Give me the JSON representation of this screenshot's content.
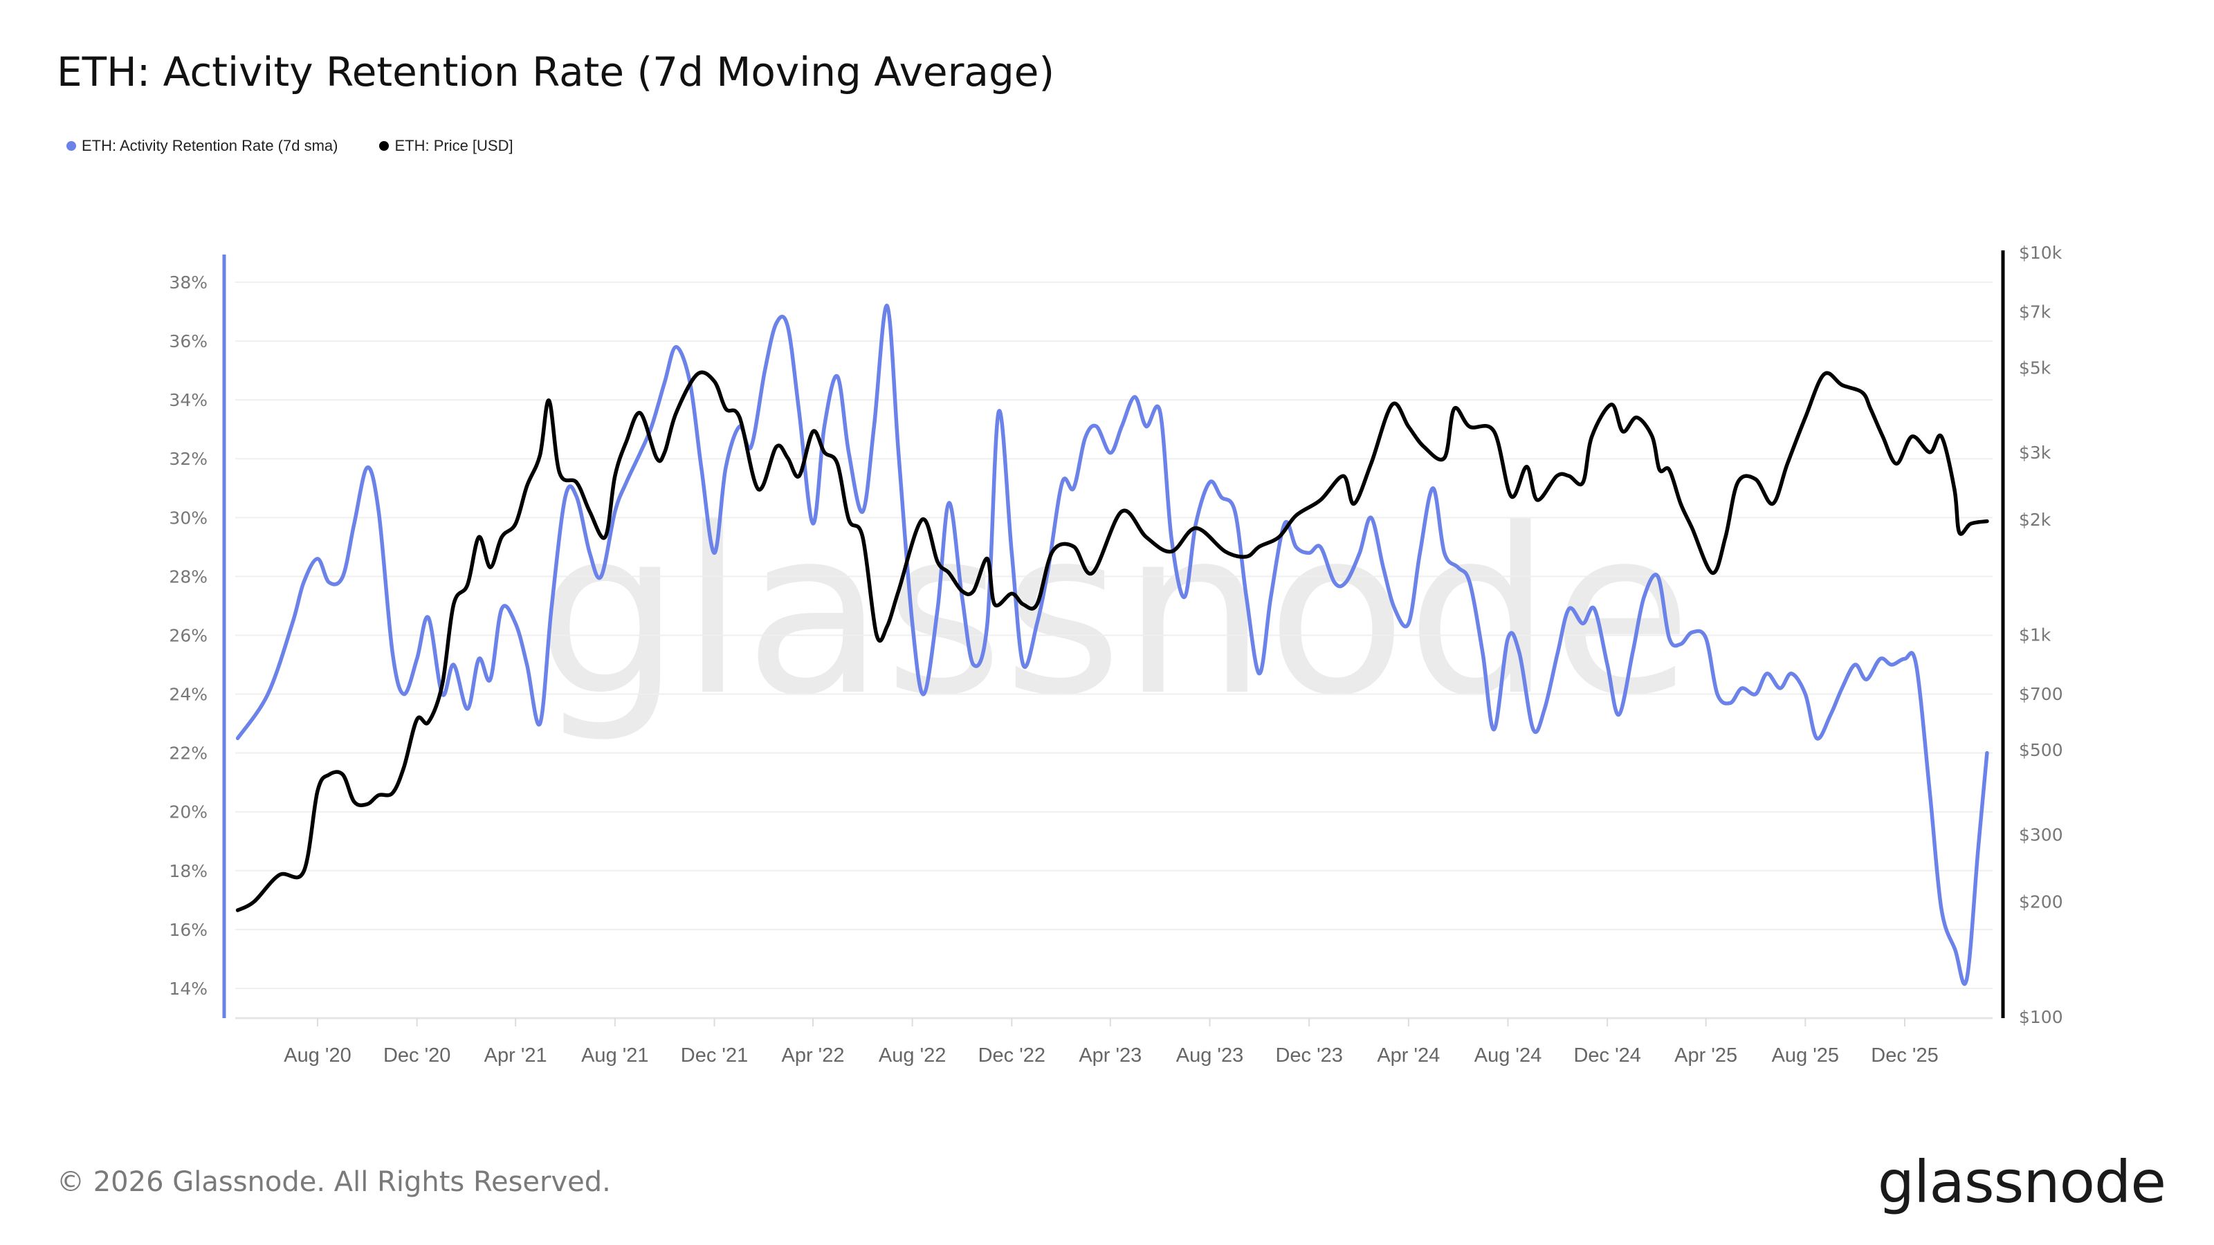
{
  "title": "ETH: Activity Retention Rate (7d Moving Average)",
  "footer": "© 2026 Glassnode. All Rights Reserved.",
  "logo_text": "glassnode",
  "watermark_text": "glassnode",
  "chart_data": {
    "type": "line",
    "title": "ETH: Activity Retention Rate (7d Moving Average)",
    "legend_position": "top-left",
    "grid": true,
    "x_ticks": [
      "Aug '20",
      "Dec '20",
      "Apr '21",
      "Aug '21",
      "Dec '21",
      "Apr '22",
      "Aug '22",
      "Dec '22",
      "Apr '23",
      "Aug '23",
      "Dec '23",
      "Apr '24",
      "Aug '24",
      "Dec '24",
      "Apr '25",
      "Aug '25",
      "Dec '25"
    ],
    "x_tick_dates": [
      "2020-08-01",
      "2020-12-01",
      "2021-04-01",
      "2021-08-01",
      "2021-12-01",
      "2022-04-01",
      "2022-08-01",
      "2022-12-01",
      "2023-04-01",
      "2023-08-01",
      "2023-12-01",
      "2024-04-01",
      "2024-08-01",
      "2024-12-01",
      "2025-04-01",
      "2025-08-01",
      "2025-12-01"
    ],
    "left_axis": {
      "ticks": [
        "14%",
        "16%",
        "18%",
        "20%",
        "22%",
        "24%",
        "26%",
        "28%",
        "30%",
        "32%",
        "34%",
        "36%",
        "38%"
      ],
      "tick_values": [
        14,
        16,
        18,
        20,
        22,
        24,
        26,
        28,
        30,
        32,
        34,
        36,
        38
      ],
      "range": [
        13.5,
        38.9
      ],
      "color": "#6b82e8"
    },
    "right_axis": {
      "scale": "log",
      "ticks": [
        "$100",
        "$200",
        "$300",
        "$500",
        "$700",
        "$1k",
        "$2k",
        "$3k",
        "$5k",
        "$7k",
        "$10k"
      ],
      "tick_values": [
        100,
        200,
        300,
        500,
        700,
        1000,
        2000,
        3000,
        5000,
        7000,
        10000
      ],
      "range": [
        100,
        10000
      ],
      "color": "#000000"
    },
    "series": [
      {
        "name": "ETH: Activity Retention Rate (7d sma)",
        "axis": "left",
        "color": "#6b82e8",
        "points": [
          [
            "2020-04-25",
            22.5
          ],
          [
            "2020-06-01",
            24
          ],
          [
            "2020-07-01",
            26.4
          ],
          [
            "2020-07-15",
            27.8
          ],
          [
            "2020-08-01",
            28.6
          ],
          [
            "2020-08-15",
            27.8
          ],
          [
            "2020-09-01",
            28
          ],
          [
            "2020-09-15",
            29.8
          ],
          [
            "2020-10-01",
            31.7
          ],
          [
            "2020-10-15",
            30.2
          ],
          [
            "2020-11-01",
            25.4
          ],
          [
            "2020-11-15",
            24
          ],
          [
            "2020-12-01",
            25.2
          ],
          [
            "2020-12-15",
            26.6
          ],
          [
            "2021-01-01",
            24
          ],
          [
            "2021-01-15",
            25
          ],
          [
            "2021-02-01",
            23.5
          ],
          [
            "2021-02-15",
            25.2
          ],
          [
            "2021-03-01",
            24.5
          ],
          [
            "2021-03-15",
            26.9
          ],
          [
            "2021-04-01",
            26.4
          ],
          [
            "2021-04-15",
            25
          ],
          [
            "2021-05-01",
            23
          ],
          [
            "2021-05-15",
            26.9
          ],
          [
            "2021-06-01",
            30.7
          ],
          [
            "2021-06-15",
            30.7
          ],
          [
            "2021-07-01",
            28.8
          ],
          [
            "2021-07-15",
            28
          ],
          [
            "2021-08-01",
            30.2
          ],
          [
            "2021-08-15",
            31.2
          ],
          [
            "2021-09-01",
            32.2
          ],
          [
            "2021-09-15",
            33.1
          ],
          [
            "2021-10-01",
            34.6
          ],
          [
            "2021-10-15",
            35.8
          ],
          [
            "2021-11-01",
            34.6
          ],
          [
            "2021-11-15",
            31.7
          ],
          [
            "2021-12-01",
            28.8
          ],
          [
            "2021-12-15",
            31.7
          ],
          [
            "2022-01-01",
            33.1
          ],
          [
            "2022-01-15",
            32.4
          ],
          [
            "2022-02-01",
            35
          ],
          [
            "2022-02-15",
            36.6
          ],
          [
            "2022-03-01",
            36.5
          ],
          [
            "2022-03-15",
            33.6
          ],
          [
            "2022-04-01",
            29.8
          ],
          [
            "2022-04-15",
            33.1
          ],
          [
            "2022-05-01",
            34.8
          ],
          [
            "2022-05-15",
            32.2
          ],
          [
            "2022-06-01",
            30.2
          ],
          [
            "2022-06-15",
            33.1
          ],
          [
            "2022-07-01",
            37.2
          ],
          [
            "2022-07-15",
            32.2
          ],
          [
            "2022-08-01",
            26.4
          ],
          [
            "2022-08-15",
            24
          ],
          [
            "2022-09-01",
            26.9
          ],
          [
            "2022-09-15",
            30.5
          ],
          [
            "2022-10-01",
            27.3
          ],
          [
            "2022-10-15",
            25
          ],
          [
            "2022-11-01",
            26.4
          ],
          [
            "2022-11-15",
            33.6
          ],
          [
            "2022-12-01",
            28.8
          ],
          [
            "2022-12-15",
            25
          ],
          [
            "2023-01-01",
            26.4
          ],
          [
            "2023-01-15",
            28.3
          ],
          [
            "2023-02-01",
            31.2
          ],
          [
            "2023-02-15",
            31
          ],
          [
            "2023-03-01",
            32.7
          ],
          [
            "2023-03-15",
            33.1
          ],
          [
            "2023-04-01",
            32.2
          ],
          [
            "2023-04-15",
            33.1
          ],
          [
            "2023-05-01",
            34.1
          ],
          [
            "2023-05-15",
            33.1
          ],
          [
            "2023-06-01",
            33.6
          ],
          [
            "2023-06-15",
            29.3
          ],
          [
            "2023-07-01",
            27.3
          ],
          [
            "2023-07-15",
            29.8
          ],
          [
            "2023-08-01",
            31.2
          ],
          [
            "2023-08-15",
            30.7
          ],
          [
            "2023-09-01",
            30.2
          ],
          [
            "2023-09-15",
            27.3
          ],
          [
            "2023-10-01",
            24.7
          ],
          [
            "2023-10-15",
            27.3
          ],
          [
            "2023-11-01",
            29.8
          ],
          [
            "2023-11-15",
            29
          ],
          [
            "2023-12-01",
            28.8
          ],
          [
            "2023-12-15",
            29
          ],
          [
            "2024-01-01",
            27.8
          ],
          [
            "2024-01-15",
            27.8
          ],
          [
            "2024-02-01",
            28.8
          ],
          [
            "2024-02-15",
            30
          ],
          [
            "2024-03-01",
            28.3
          ],
          [
            "2024-03-15",
            26.9
          ],
          [
            "2024-04-01",
            26.4
          ],
          [
            "2024-04-15",
            28.8
          ],
          [
            "2024-05-01",
            31
          ],
          [
            "2024-05-15",
            28.8
          ],
          [
            "2024-06-01",
            28.3
          ],
          [
            "2024-06-15",
            27.8
          ],
          [
            "2024-07-01",
            25.4
          ],
          [
            "2024-07-15",
            22.8
          ],
          [
            "2024-08-01",
            25.9
          ],
          [
            "2024-08-15",
            25.4
          ],
          [
            "2024-09-01",
            22.8
          ],
          [
            "2024-09-15",
            23.5
          ],
          [
            "2024-10-01",
            25.4
          ],
          [
            "2024-10-15",
            26.9
          ],
          [
            "2024-11-01",
            26.4
          ],
          [
            "2024-11-15",
            26.9
          ],
          [
            "2024-12-01",
            25
          ],
          [
            "2024-12-15",
            23.3
          ],
          [
            "2025-01-01",
            25.4
          ],
          [
            "2025-01-15",
            27.3
          ],
          [
            "2025-02-01",
            28
          ],
          [
            "2025-02-15",
            25.9
          ],
          [
            "2025-03-01",
            25.7
          ],
          [
            "2025-03-15",
            26.1
          ],
          [
            "2025-04-01",
            25.9
          ],
          [
            "2025-04-15",
            24
          ],
          [
            "2025-05-01",
            23.7
          ],
          [
            "2025-05-15",
            24.2
          ],
          [
            "2025-06-01",
            24
          ],
          [
            "2025-06-15",
            24.7
          ],
          [
            "2025-07-01",
            24.2
          ],
          [
            "2025-07-15",
            24.7
          ],
          [
            "2025-08-01",
            24
          ],
          [
            "2025-08-15",
            22.5
          ],
          [
            "2025-09-01",
            23.3
          ],
          [
            "2025-09-15",
            24.2
          ],
          [
            "2025-10-01",
            25
          ],
          [
            "2025-10-15",
            24.5
          ],
          [
            "2025-11-01",
            25.2
          ],
          [
            "2025-11-15",
            25
          ],
          [
            "2025-12-01",
            25.2
          ],
          [
            "2025-12-15",
            25
          ],
          [
            "2026-01-01",
            20.6
          ],
          [
            "2026-01-15",
            16.7
          ],
          [
            "2026-02-01",
            15.3
          ],
          [
            "2026-02-15",
            14.3
          ],
          [
            "2026-03-01",
            18.7
          ],
          [
            "2026-03-12",
            22
          ]
        ]
      },
      {
        "name": "ETH: Price [USD]",
        "axis": "right",
        "color": "#000000",
        "points": [
          [
            "2020-04-25",
            190
          ],
          [
            "2020-05-15",
            200
          ],
          [
            "2020-06-15",
            235
          ],
          [
            "2020-07-15",
            240
          ],
          [
            "2020-08-01",
            390
          ],
          [
            "2020-08-15",
            430
          ],
          [
            "2020-09-01",
            430
          ],
          [
            "2020-09-15",
            365
          ],
          [
            "2020-10-01",
            360
          ],
          [
            "2020-10-15",
            380
          ],
          [
            "2020-11-01",
            385
          ],
          [
            "2020-11-15",
            450
          ],
          [
            "2020-12-01",
            600
          ],
          [
            "2020-12-15",
            590
          ],
          [
            "2021-01-01",
            740
          ],
          [
            "2021-01-15",
            1200
          ],
          [
            "2021-02-01",
            1350
          ],
          [
            "2021-02-15",
            1800
          ],
          [
            "2021-03-01",
            1500
          ],
          [
            "2021-03-15",
            1800
          ],
          [
            "2021-04-01",
            1950
          ],
          [
            "2021-04-15",
            2450
          ],
          [
            "2021-05-01",
            2950
          ],
          [
            "2021-05-12",
            4100
          ],
          [
            "2021-05-25",
            2650
          ],
          [
            "2021-06-15",
            2500
          ],
          [
            "2021-07-01",
            2100
          ],
          [
            "2021-07-20",
            1800
          ],
          [
            "2021-08-01",
            2600
          ],
          [
            "2021-08-15",
            3200
          ],
          [
            "2021-09-01",
            3800
          ],
          [
            "2021-09-21",
            2900
          ],
          [
            "2021-10-01",
            3000
          ],
          [
            "2021-10-15",
            3800
          ],
          [
            "2021-11-10",
            4800
          ],
          [
            "2021-12-01",
            4600
          ],
          [
            "2021-12-15",
            3900
          ],
          [
            "2022-01-01",
            3700
          ],
          [
            "2022-01-24",
            2400
          ],
          [
            "2022-02-15",
            3100
          ],
          [
            "2022-03-01",
            2900
          ],
          [
            "2022-03-15",
            2600
          ],
          [
            "2022-04-01",
            3400
          ],
          [
            "2022-04-15",
            3000
          ],
          [
            "2022-05-01",
            2800
          ],
          [
            "2022-05-15",
            2000
          ],
          [
            "2022-06-01",
            1800
          ],
          [
            "2022-06-18",
            1000
          ],
          [
            "2022-07-01",
            1050
          ],
          [
            "2022-07-15",
            1300
          ],
          [
            "2022-08-13",
            2000
          ],
          [
            "2022-09-01",
            1550
          ],
          [
            "2022-09-15",
            1450
          ],
          [
            "2022-10-01",
            1300
          ],
          [
            "2022-10-15",
            1300
          ],
          [
            "2022-11-01",
            1580
          ],
          [
            "2022-11-10",
            1200
          ],
          [
            "2022-12-01",
            1280
          ],
          [
            "2022-12-15",
            1200
          ],
          [
            "2023-01-01",
            1200
          ],
          [
            "2023-01-20",
            1650
          ],
          [
            "2023-02-15",
            1700
          ],
          [
            "2023-03-10",
            1450
          ],
          [
            "2023-04-15",
            2100
          ],
          [
            "2023-05-15",
            1800
          ],
          [
            "2023-06-15",
            1650
          ],
          [
            "2023-07-15",
            1900
          ],
          [
            "2023-08-20",
            1650
          ],
          [
            "2023-09-15",
            1600
          ],
          [
            "2023-10-01",
            1700
          ],
          [
            "2023-10-25",
            1800
          ],
          [
            "2023-11-15",
            2050
          ],
          [
            "2023-12-15",
            2250
          ],
          [
            "2024-01-12",
            2600
          ],
          [
            "2024-01-25",
            2200
          ],
          [
            "2024-02-15",
            2800
          ],
          [
            "2024-03-12",
            4000
          ],
          [
            "2024-04-01",
            3500
          ],
          [
            "2024-04-20",
            3100
          ],
          [
            "2024-05-15",
            2900
          ],
          [
            "2024-05-27",
            3900
          ],
          [
            "2024-06-15",
            3500
          ],
          [
            "2024-07-15",
            3400
          ],
          [
            "2024-08-05",
            2300
          ],
          [
            "2024-08-24",
            2750
          ],
          [
            "2024-09-06",
            2250
          ],
          [
            "2024-09-30",
            2600
          ],
          [
            "2024-10-15",
            2600
          ],
          [
            "2024-11-01",
            2500
          ],
          [
            "2024-11-12",
            3300
          ],
          [
            "2024-12-06",
            4000
          ],
          [
            "2024-12-20",
            3400
          ],
          [
            "2025-01-06",
            3700
          ],
          [
            "2025-01-25",
            3300
          ],
          [
            "2025-02-03",
            2700
          ],
          [
            "2025-02-15",
            2700
          ],
          [
            "2025-03-01",
            2200
          ],
          [
            "2025-03-15",
            1900
          ],
          [
            "2025-04-09",
            1450
          ],
          [
            "2025-04-25",
            1800
          ],
          [
            "2025-05-10",
            2500
          ],
          [
            "2025-06-01",
            2550
          ],
          [
            "2025-06-22",
            2200
          ],
          [
            "2025-07-10",
            2800
          ],
          [
            "2025-08-01",
            3700
          ],
          [
            "2025-08-24",
            4800
          ],
          [
            "2025-09-15",
            4500
          ],
          [
            "2025-10-10",
            4300
          ],
          [
            "2025-10-20",
            3900
          ],
          [
            "2025-11-04",
            3300
          ],
          [
            "2025-11-21",
            2800
          ],
          [
            "2025-12-10",
            3300
          ],
          [
            "2026-01-01",
            3000
          ],
          [
            "2026-01-15",
            3300
          ],
          [
            "2026-01-31",
            2400
          ],
          [
            "2026-02-06",
            1850
          ],
          [
            "2026-02-20",
            1950
          ],
          [
            "2026-03-12",
            1980
          ]
        ]
      }
    ]
  }
}
